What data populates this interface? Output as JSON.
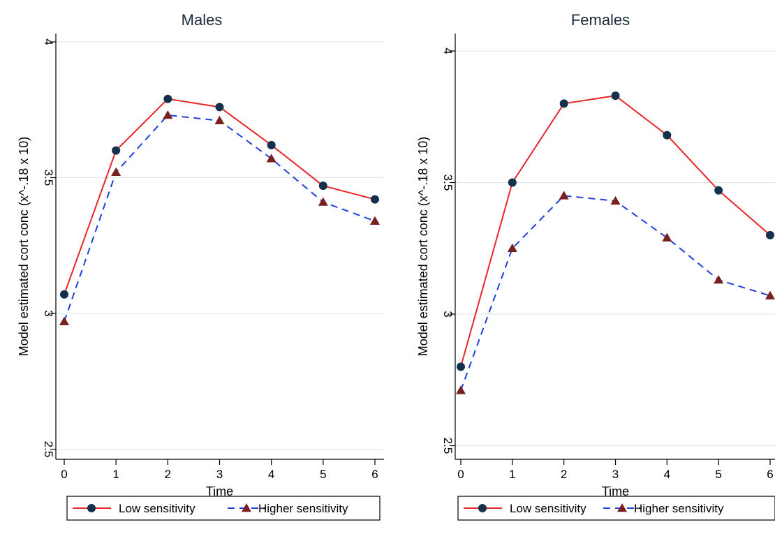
{
  "chart_data": [
    {
      "type": "line",
      "title": "Males",
      "xlabel": "Time",
      "ylabel": "Model estimated cort conc (x^-.18 x 10)",
      "x": [
        0,
        1,
        2,
        3,
        4,
        5,
        6
      ],
      "xticks": [
        "0",
        "1",
        "2",
        "3",
        "4",
        "5",
        "6"
      ],
      "ylim": [
        2.45,
        4.05
      ],
      "yticks": [
        "2.5",
        "3",
        "3.5",
        "4"
      ],
      "grid": true,
      "legend_position": "bottom",
      "series": [
        {
          "name": "Low sensitivity",
          "color": "#e8262a",
          "dash": "solid",
          "marker": "circle",
          "values": [
            3.07,
            3.6,
            3.79,
            3.76,
            3.62,
            3.47,
            3.42
          ]
        },
        {
          "name": "Higher sensitivity",
          "color": "#1f3fe0",
          "dash": "dashed",
          "marker": "triangle",
          "values": [
            2.97,
            3.52,
            3.73,
            3.71,
            3.57,
            3.41,
            3.34
          ]
        }
      ]
    },
    {
      "type": "line",
      "title": "Females",
      "xlabel": "Time",
      "ylabel": "Model estimated cort conc (x^-.18 x 10)",
      "x": [
        0,
        1,
        2,
        3,
        4,
        5,
        6
      ],
      "xticks": [
        "0",
        "1",
        "2",
        "3",
        "4",
        "5",
        "6"
      ],
      "ylim": [
        2.45,
        4.05
      ],
      "yticks": [
        "2.5",
        "3",
        "3.5",
        "4"
      ],
      "grid": true,
      "legend_position": "bottom",
      "series": [
        {
          "name": "Low sensitivity",
          "color": "#e8262a",
          "dash": "solid",
          "marker": "circle",
          "values": [
            2.8,
            3.5,
            3.8,
            3.83,
            3.68,
            3.47,
            3.3
          ]
        },
        {
          "name": "Higher sensitivity",
          "color": "#1f3fe0",
          "dash": "dashed",
          "marker": "triangle",
          "values": [
            2.71,
            3.25,
            3.45,
            3.43,
            3.29,
            3.13,
            3.07
          ]
        }
      ]
    }
  ],
  "style": {
    "marker_circle_color": "#13304d",
    "marker_triangle_color": "#7a1f1f"
  }
}
